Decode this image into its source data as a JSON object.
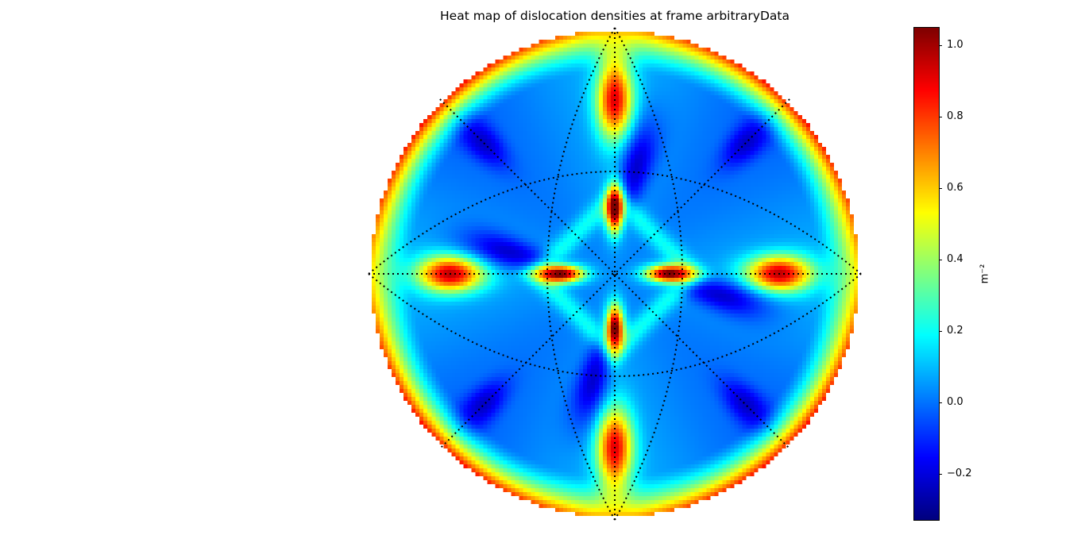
{
  "chart_data": {
    "type": "heatmap",
    "title": "Heat map of dislocation densities at frame arbitraryData",
    "colormap": "jet",
    "projection": "stereographic",
    "vmin": -0.33,
    "vmax": 1.05,
    "colorbar": {
      "label": "m⁻²",
      "ticks": [
        -0.2,
        0.0,
        0.2,
        0.4,
        0.6,
        0.8,
        1.0
      ],
      "tick_labels": [
        "−0.2",
        "0.0",
        "0.2",
        "0.4",
        "0.6",
        "0.8",
        "1.0"
      ]
    },
    "grid": true,
    "grid_style": "dotted",
    "grid_color": "#000000",
    "hotspots": [
      {
        "location": "center-top",
        "value": 1.0
      },
      {
        "location": "center-bottom",
        "value": 1.0
      },
      {
        "location": "outer-left",
        "value": 1.0
      },
      {
        "location": "outer-right",
        "value": 1.0
      },
      {
        "location": "inner-top",
        "value": 1.0
      },
      {
        "location": "inner-bottom",
        "value": 1.0
      },
      {
        "location": "inner-left",
        "value": 1.0
      },
      {
        "location": "inner-right",
        "value": 1.0
      },
      {
        "location": "rim-diagonals",
        "value": 0.8
      }
    ]
  }
}
